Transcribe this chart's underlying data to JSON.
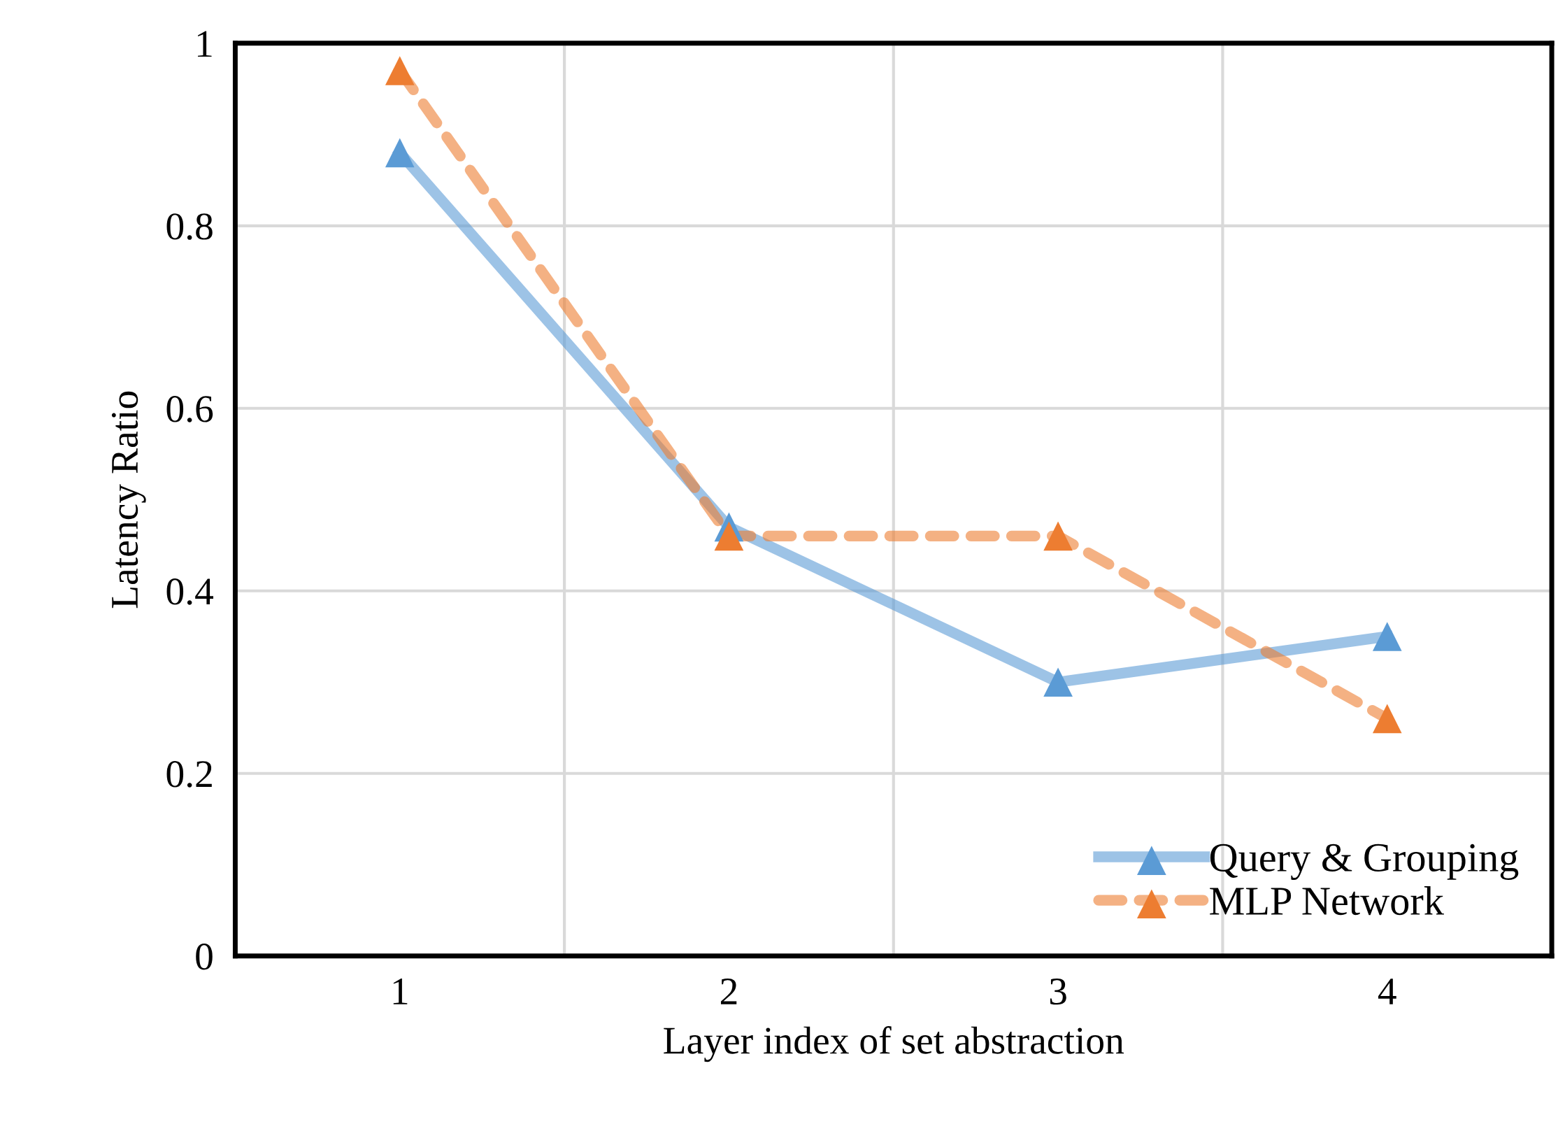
{
  "chart_data": {
    "type": "line",
    "xlabel": "Layer index of set abstraction",
    "ylabel": "Latency Ratio",
    "categories": [
      "1",
      "2",
      "3",
      "4"
    ],
    "series": [
      {
        "name": "Query & Grouping",
        "color": "#5b9bd5",
        "values": [
          0.88,
          0.47,
          0.3,
          0.35
        ],
        "line_style": "solid"
      },
      {
        "name": "MLP Network",
        "color": "#ed7d31",
        "values": [
          0.97,
          0.46,
          0.46,
          0.26
        ],
        "line_style": "dashed"
      }
    ],
    "ylim": [
      0,
      1
    ],
    "yticks": [
      0,
      0.2,
      0.4,
      0.6,
      0.8,
      1
    ],
    "grid": true,
    "legend": "bottom right",
    "marker": "triangle"
  }
}
